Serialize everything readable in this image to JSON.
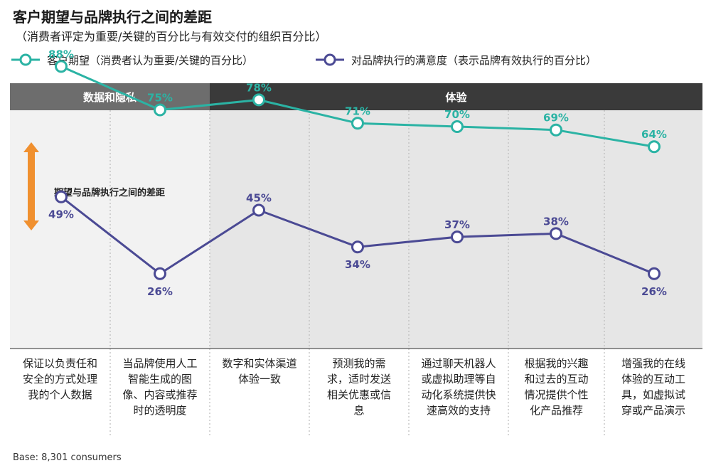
{
  "title": "客户期望与品牌执行之间的差距",
  "subtitle": "（消费者评定为重要/关键的百分比与有效交付的组织百分比）",
  "legend": {
    "expectation": "客户期望（消费者认为重要/关键的百分比）",
    "satisfaction": "对品牌执行的满意度（表示品牌有效执行的百分比）"
  },
  "gap_label": "期望与品牌执行之间的差距",
  "base_note": "Base: 8,301 consumers",
  "colors": {
    "expectation": "#2bb3a4",
    "satisfaction": "#4b4a94",
    "gap_arrow": "#f0902f",
    "section_dark": "#3a3a3a",
    "section_gray": "#6d6d6d"
  },
  "chart_data": {
    "type": "line",
    "sections": [
      {
        "name": "数据和隐私",
        "categories": [
          0,
          1
        ]
      },
      {
        "name": "体验",
        "categories": [
          2,
          3,
          4,
          5,
          6
        ]
      }
    ],
    "categories": [
      [
        "保证以负责任和",
        "安全的方式处理",
        "我的个人数据"
      ],
      [
        "当品牌使用人工",
        "智能生成的图",
        "像、内容或推荐",
        "时的透明度"
      ],
      [
        "数字和实体渠道",
        "体验一致"
      ],
      [
        "预测我的需",
        "求，适时发送",
        "相关优惠或信",
        "息"
      ],
      [
        "通过聊天机器人",
        "或虚拟助理等自",
        "动化系统提供快",
        "速高效的支持"
      ],
      [
        "根据我的兴趣",
        "和过去的互动",
        "情况提供个性",
        "化产品推荐"
      ],
      [
        "增强我的在线",
        "体验的互动工",
        "具，如虚拟试",
        "穿或产品演示"
      ]
    ],
    "series": [
      {
        "name": "客户期望（消费者认为重要/关键的百分比）",
        "values": [
          88,
          75,
          78,
          71,
          70,
          69,
          64
        ],
        "labels": [
          "88%",
          "75%",
          "78%",
          "71%",
          "70%",
          "69%",
          "64%"
        ]
      },
      {
        "name": "对品牌执行的满意度（表示品牌有效执行的百分比）",
        "values": [
          49,
          26,
          45,
          34,
          37,
          38,
          26
        ],
        "labels": [
          "49%",
          "26%",
          "45%",
          "34%",
          "37%",
          "38%",
          "26%"
        ]
      }
    ],
    "unit": "%"
  }
}
